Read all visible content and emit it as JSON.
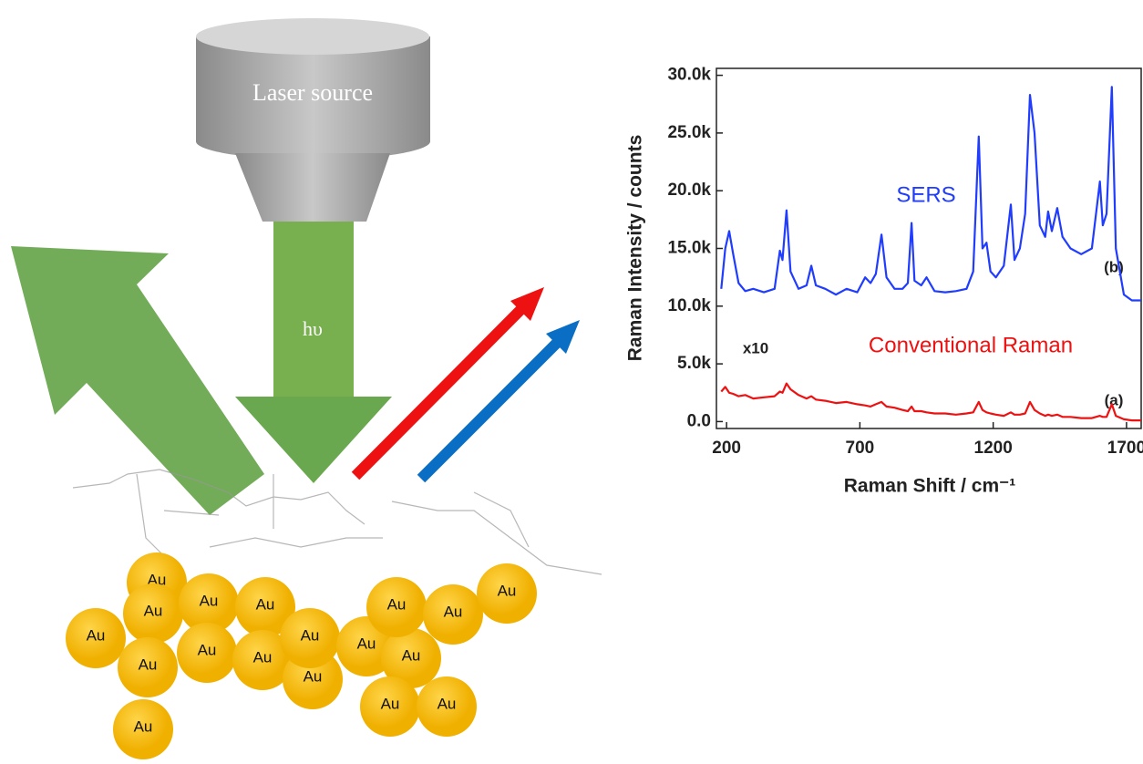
{
  "diagram": {
    "laser_label": "Laser source",
    "beam_label": "hυ",
    "particles": [
      "Au",
      "Au",
      "Au",
      "Au",
      "Au",
      "Au",
      "Au",
      "Au",
      "Au",
      "Au",
      "Au",
      "Au",
      "Au",
      "Au",
      "Au",
      "Au",
      "Au",
      "Au"
    ]
  },
  "chart_data": {
    "type": "line",
    "xlabel": "Raman Shift / cm⁻¹",
    "ylabel": "Raman Intensity / counts",
    "x": [
      180,
      195,
      210,
      225,
      245,
      270,
      300,
      340,
      380,
      400,
      410,
      425,
      440,
      470,
      500,
      518,
      535,
      570,
      610,
      650,
      690,
      720,
      740,
      760,
      781,
      800,
      830,
      860,
      880,
      894,
      905,
      930,
      950,
      980,
      1020,
      1060,
      1100,
      1125,
      1146,
      1160,
      1175,
      1190,
      1210,
      1240,
      1266,
      1280,
      1300,
      1320,
      1338,
      1355,
      1375,
      1395,
      1406,
      1420,
      1440,
      1460,
      1490,
      1530,
      1570,
      1600,
      1611,
      1625,
      1645,
      1660,
      1690,
      1720,
      1755
    ],
    "series": [
      {
        "name": "SERS",
        "color": "#1f3cff",
        "values": [
          11500,
          15000,
          16500,
          14500,
          12000,
          11300,
          11500,
          11200,
          11500,
          14800,
          14000,
          18300,
          13000,
          11500,
          11800,
          13500,
          11800,
          11500,
          11000,
          11500,
          11200,
          12500,
          12000,
          12800,
          16200,
          12500,
          11500,
          11500,
          12000,
          17200,
          12200,
          11800,
          12500,
          11300,
          11200,
          11300,
          11500,
          13000,
          24700,
          15000,
          15500,
          13000,
          12500,
          13500,
          18800,
          14000,
          15000,
          18000,
          28300,
          25000,
          17000,
          16000,
          18200,
          16500,
          18500,
          16000,
          15000,
          14500,
          15000,
          20800,
          17000,
          18000,
          29000,
          15000,
          11000,
          10500,
          10500
        ]
      },
      {
        "name": "Conventional Raman",
        "color": "#ee1111",
        "values": [
          2600,
          3000,
          2500,
          2400,
          2200,
          2300,
          2000,
          2100,
          2200,
          2600,
          2500,
          3300,
          2800,
          2300,
          2000,
          2200,
          1900,
          1800,
          1600,
          1700,
          1500,
          1400,
          1300,
          1500,
          1700,
          1300,
          1200,
          1000,
          900,
          1300,
          900,
          900,
          800,
          700,
          700,
          600,
          700,
          800,
          1700,
          1000,
          800,
          700,
          600,
          500,
          800,
          600,
          600,
          700,
          1700,
          1000,
          700,
          500,
          600,
          500,
          600,
          400,
          400,
          300,
          300,
          500,
          400,
          400,
          1500,
          500,
          200,
          100,
          100
        ]
      }
    ],
    "annotations": [
      "(b)",
      "x10",
      "(a)"
    ],
    "xlim": [
      162,
      1755
    ],
    "ylim": [
      -600,
      30600
    ],
    "xticks": [
      200,
      700,
      1200,
      1700
    ],
    "yticks": [
      {
        "value": 0,
        "label": "0.0"
      },
      {
        "value": 5000,
        "label": "5.0k"
      },
      {
        "value": 10000,
        "label": "10.0k"
      },
      {
        "value": 15000,
        "label": "15.0k"
      },
      {
        "value": 20000,
        "label": "20.0k"
      },
      {
        "value": 25000,
        "label": "25.0k"
      },
      {
        "value": 30000,
        "label": "30.0k"
      }
    ]
  }
}
